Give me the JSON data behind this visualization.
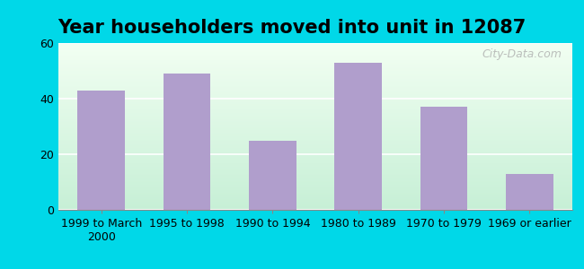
{
  "title": "Year householders moved into unit in 12087",
  "categories": [
    "1999 to March\n2000",
    "1995 to 1998",
    "1990 to 1994",
    "1980 to 1989",
    "1970 to 1979",
    "1969 or earlier"
  ],
  "values": [
    43,
    49,
    25,
    53,
    37,
    13
  ],
  "bar_color": "#b09ecc",
  "background_outer": "#00d8e8",
  "ylim": [
    0,
    60
  ],
  "yticks": [
    0,
    20,
    40,
    60
  ],
  "title_fontsize": 15,
  "tick_fontsize": 9,
  "watermark": "City-Data.com",
  "grad_top_left": "#d8f0d8",
  "grad_top_right": "#f8fef8",
  "grad_bottom_left": "#c0e8d0",
  "grad_bottom_right": "#e8f8f0"
}
